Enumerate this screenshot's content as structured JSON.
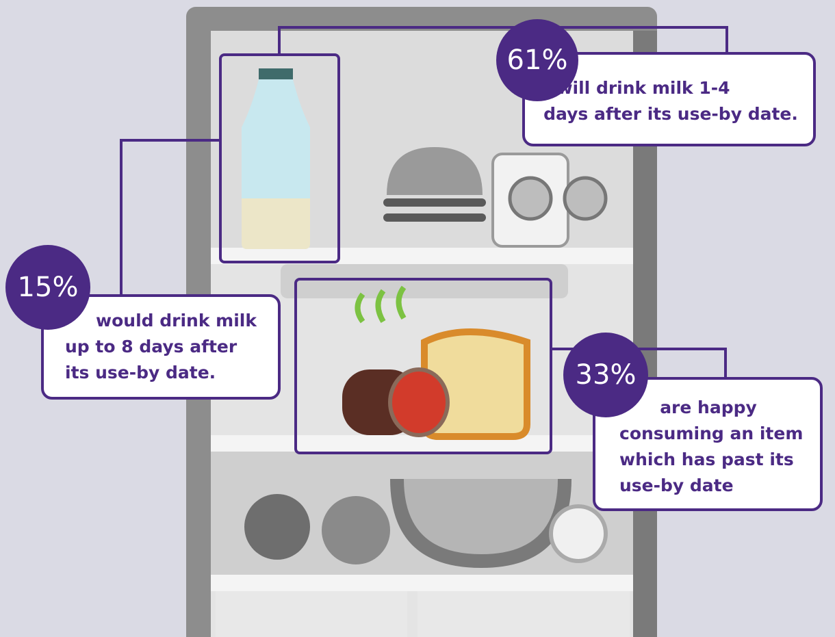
{
  "callouts": [
    {
      "percent": "61%",
      "lines": [
        "will drink milk 1-4",
        "days after its use-by date."
      ]
    },
    {
      "percent": "15%",
      "lines": [
        "would drink milk",
        "up to 8 days after",
        "its use-by date."
      ]
    },
    {
      "percent": "33%",
      "lines": [
        "are happy",
        "consuming an item",
        "which has past its",
        "use-by date"
      ]
    }
  ]
}
